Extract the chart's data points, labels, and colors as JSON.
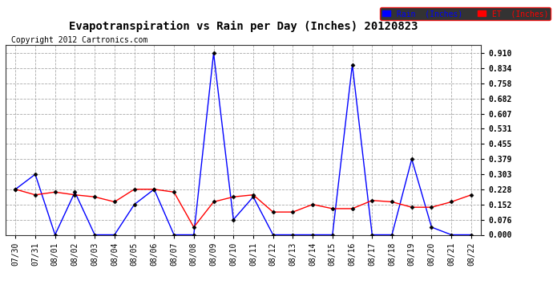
{
  "title": "Evapotranspiration vs Rain per Day (Inches) 20120823",
  "copyright": "Copyright 2012 Cartronics.com",
  "x_labels": [
    "07/30",
    "07/31",
    "08/01",
    "08/02",
    "08/03",
    "08/04",
    "08/05",
    "08/06",
    "08/07",
    "08/08",
    "08/09",
    "08/10",
    "08/11",
    "08/12",
    "08/13",
    "08/14",
    "08/15",
    "08/16",
    "08/17",
    "08/18",
    "08/19",
    "08/20",
    "08/21",
    "08/22"
  ],
  "rain_inches": [
    0.228,
    0.303,
    0.0,
    0.214,
    0.0,
    0.0,
    0.152,
    0.228,
    0.0,
    0.0,
    0.91,
    0.076,
    0.19,
    0.0,
    0.0,
    0.0,
    0.0,
    0.852,
    0.0,
    0.0,
    0.379,
    0.038,
    0.0,
    0.0
  ],
  "et_inches": [
    0.228,
    0.2,
    0.214,
    0.2,
    0.19,
    0.165,
    0.228,
    0.228,
    0.214,
    0.038,
    0.165,
    0.19,
    0.2,
    0.114,
    0.114,
    0.152,
    0.131,
    0.131,
    0.172,
    0.165,
    0.138,
    0.138,
    0.165,
    0.2
  ],
  "rain_color": "#0000ff",
  "et_color": "#ff0000",
  "bg_color": "#ffffff",
  "plot_bg": "#ffffff",
  "grid_color": "#aaaaaa",
  "yticks": [
    0.0,
    0.076,
    0.152,
    0.228,
    0.303,
    0.379,
    0.455,
    0.531,
    0.607,
    0.682,
    0.758,
    0.834,
    0.91
  ],
  "ylim": [
    0.0,
    0.95
  ],
  "title_fontsize": 10,
  "copyright_fontsize": 7,
  "tick_fontsize": 7
}
